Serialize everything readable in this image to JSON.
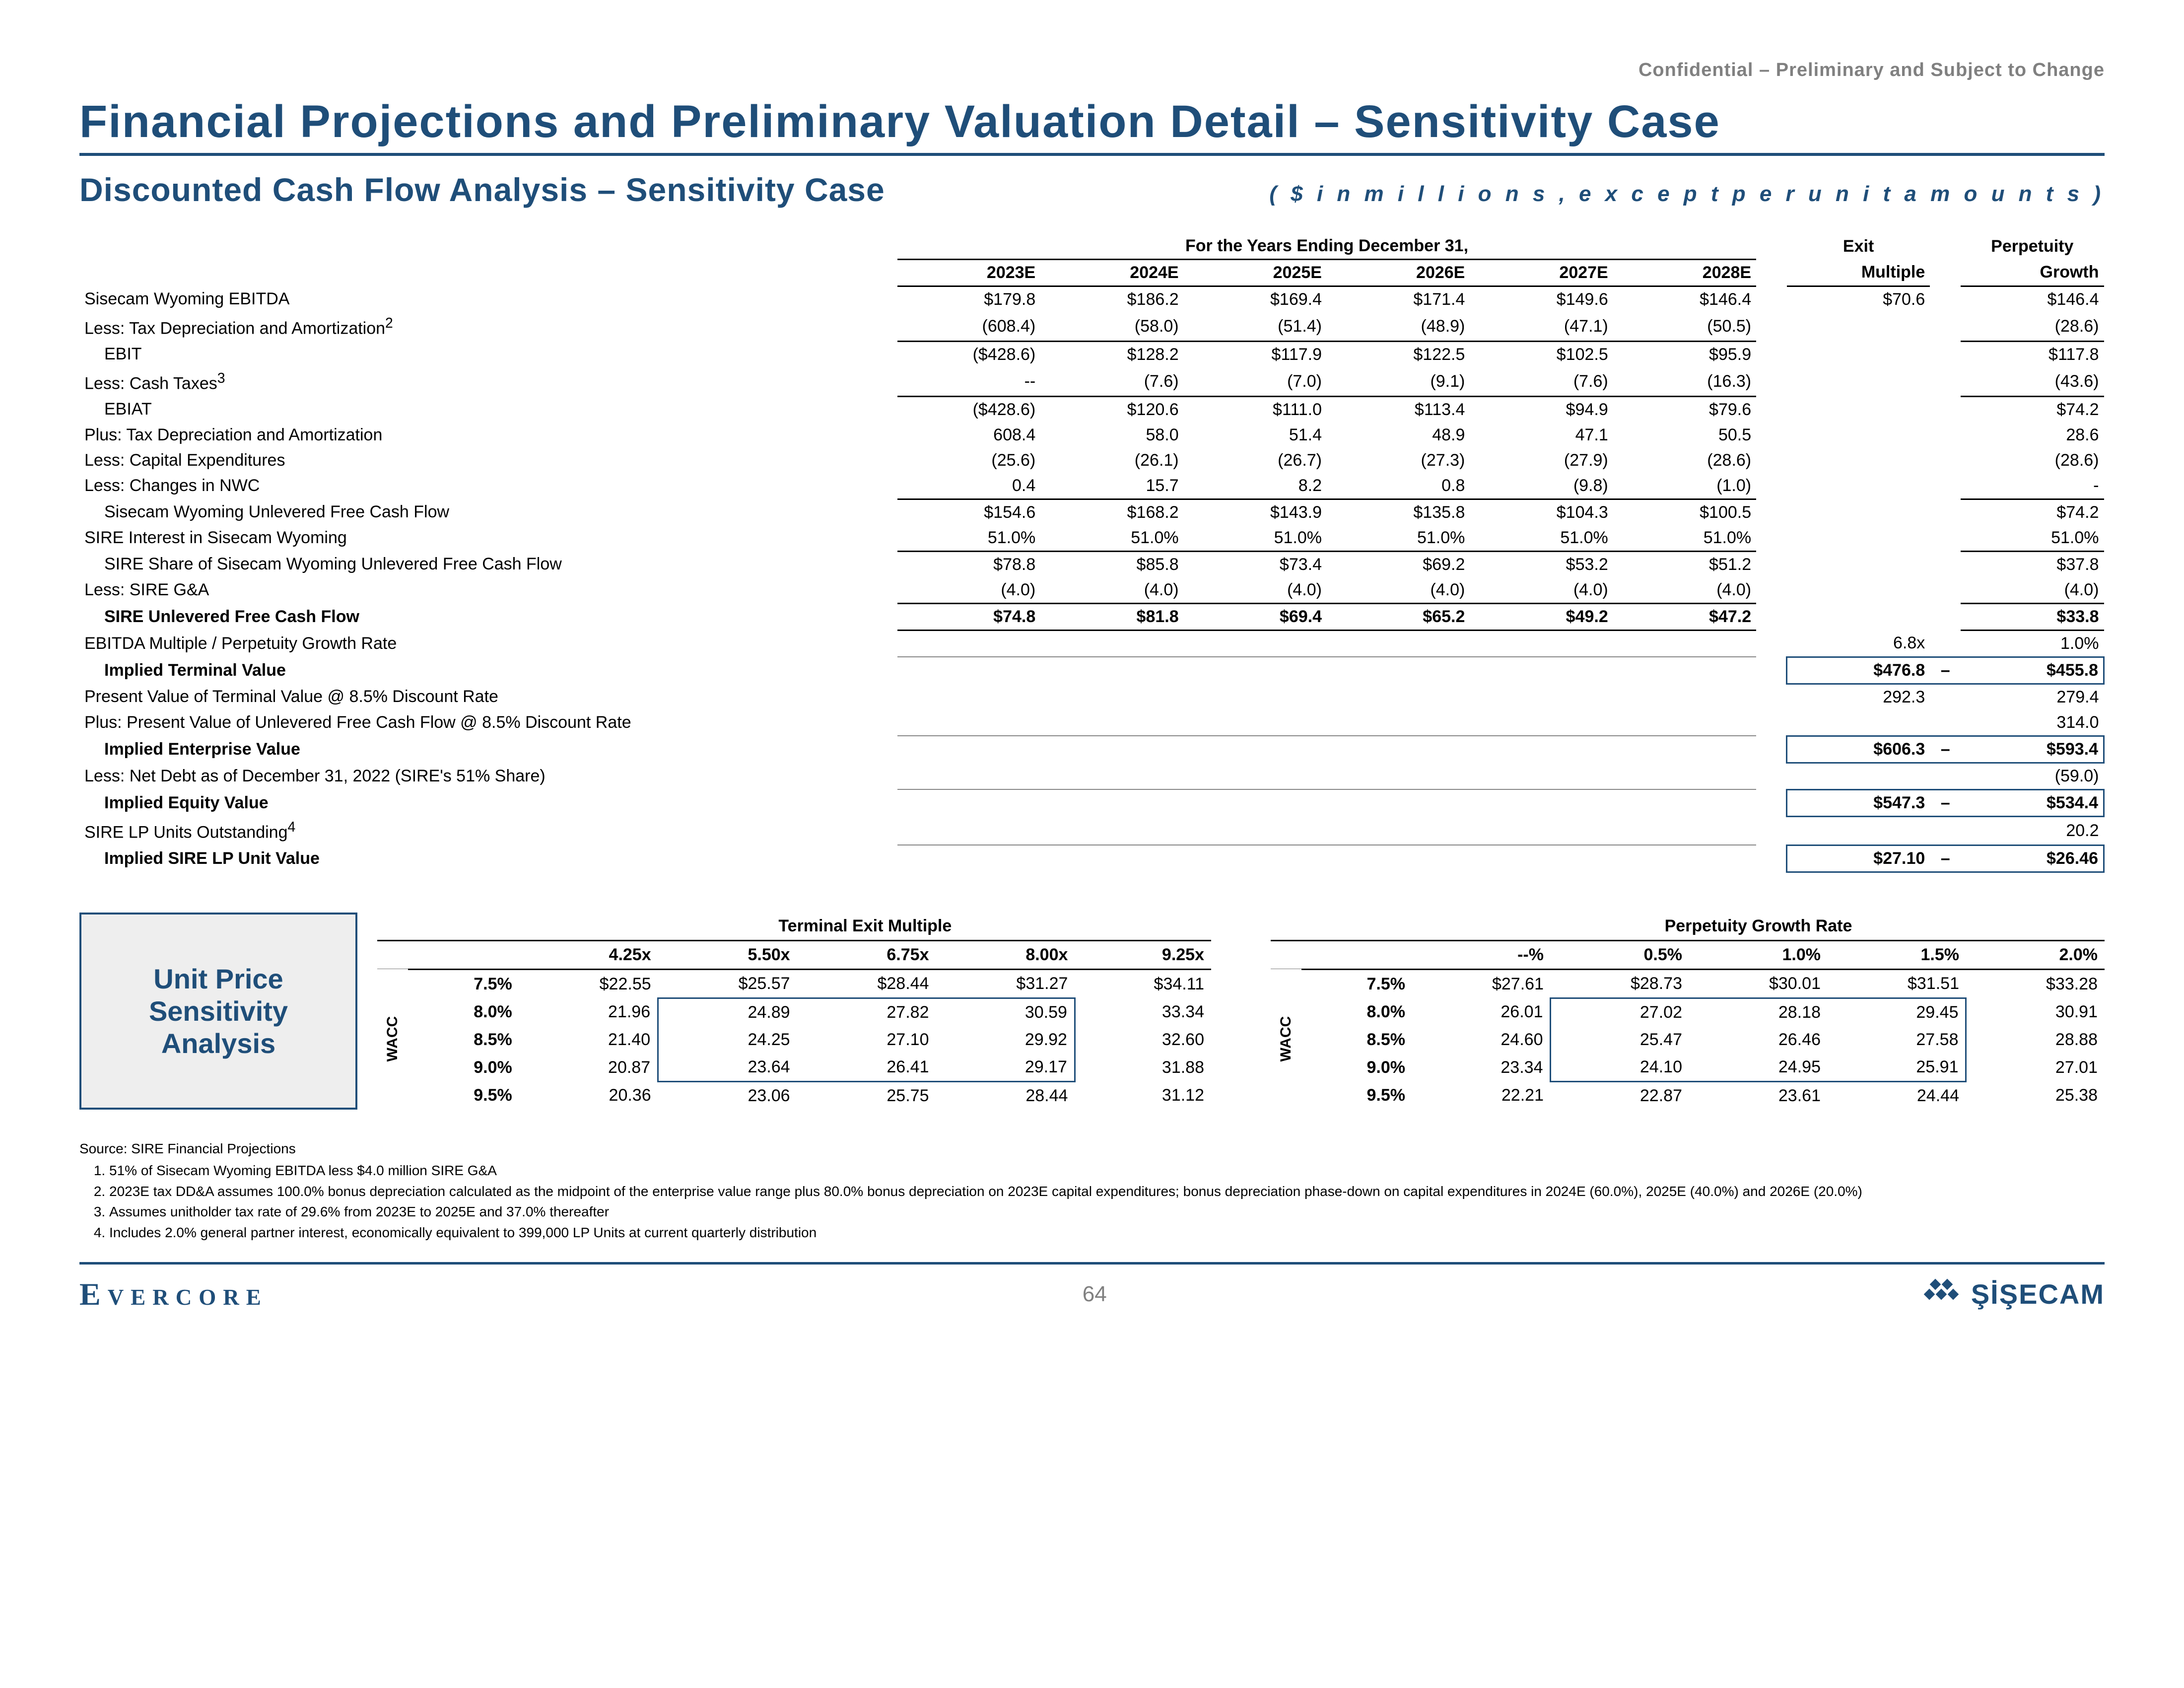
{
  "confidentiality": "Confidential – Preliminary and Subject to Change",
  "title": "Financial Projections and Preliminary Valuation Detail – Sensitivity Case",
  "subtitle": "Discounted Cash Flow Analysis – Sensitivity Case",
  "units_note": "( $   i n   m i l l i o n s ,   e x c e p t   p e r   u n i t   a m o u n t s )",
  "colors": {
    "accent": "#1f4e79",
    "grey_text": "#808080",
    "grey_bg": "#eeeeee",
    "border": "#000000"
  },
  "headers": {
    "span": "For the Years Ending December 31,",
    "years": [
      "2023E",
      "2024E",
      "2025E",
      "2026E",
      "2027E",
      "2028E"
    ],
    "exit": "Exit",
    "exit2": "Multiple",
    "perp": "Perpetuity",
    "perp2": "Growth"
  },
  "rows": [
    {
      "label": "Sisecam Wyoming EBITDA",
      "v": [
        "$179.8",
        "$186.2",
        "$169.4",
        "$171.4",
        "$149.6",
        "$146.4"
      ],
      "exit": "$70.6",
      "perp": "$146.4"
    },
    {
      "label": "Less: Tax Depreciation and Amortization",
      "sup": "2",
      "v": [
        "(608.4)",
        "(58.0)",
        "(51.4)",
        "(48.9)",
        "(47.1)",
        "(50.5)"
      ],
      "exit": "",
      "perp": "(28.6)",
      "bb": true
    },
    {
      "label": "EBIT",
      "v": [
        "($428.6)",
        "$128.2",
        "$117.9",
        "$122.5",
        "$102.5",
        "$95.9"
      ],
      "exit": "",
      "perp": "$117.8",
      "indent": 1
    },
    {
      "label": "Less: Cash Taxes",
      "sup": "3",
      "v": [
        "--",
        "(7.6)",
        "(7.0)",
        "(9.1)",
        "(7.6)",
        "(16.3)"
      ],
      "exit": "",
      "perp": "(43.6)",
      "bb": true
    },
    {
      "label": "EBIAT",
      "v": [
        "($428.6)",
        "$120.6",
        "$111.0",
        "$113.4",
        "$94.9",
        "$79.6"
      ],
      "exit": "",
      "perp": "$74.2",
      "indent": 1
    },
    {
      "label": "Plus: Tax Depreciation and Amortization",
      "v": [
        "608.4",
        "58.0",
        "51.4",
        "48.9",
        "47.1",
        "50.5"
      ],
      "exit": "",
      "perp": "28.6"
    },
    {
      "label": "Less: Capital Expenditures",
      "v": [
        "(25.6)",
        "(26.1)",
        "(26.7)",
        "(27.3)",
        "(27.9)",
        "(28.6)"
      ],
      "exit": "",
      "perp": "(28.6)"
    },
    {
      "label": "Less: Changes in NWC",
      "v": [
        "0.4",
        "15.7",
        "8.2",
        "0.8",
        "(9.8)",
        "(1.0)"
      ],
      "exit": "",
      "perp": "-",
      "bb": true
    },
    {
      "label": "Sisecam Wyoming Unlevered Free Cash Flow",
      "v": [
        "$154.6",
        "$168.2",
        "$143.9",
        "$135.8",
        "$104.3",
        "$100.5"
      ],
      "exit": "",
      "perp": "$74.2",
      "indent": 1
    },
    {
      "label": "SIRE Interest in Sisecam Wyoming",
      "v": [
        "51.0%",
        "51.0%",
        "51.0%",
        "51.0%",
        "51.0%",
        "51.0%"
      ],
      "exit": "",
      "perp": "51.0%",
      "bb": true
    },
    {
      "label": "SIRE Share of Sisecam Wyoming Unlevered Free Cash Flow",
      "v": [
        "$78.8",
        "$85.8",
        "$73.4",
        "$69.2",
        "$53.2",
        "$51.2"
      ],
      "exit": "",
      "perp": "$37.8",
      "indent": 1
    },
    {
      "label": "Less: SIRE G&A",
      "v": [
        "(4.0)",
        "(4.0)",
        "(4.0)",
        "(4.0)",
        "(4.0)",
        "(4.0)"
      ],
      "exit": "",
      "perp": "(4.0)",
      "bb": true
    },
    {
      "label": "SIRE Unlevered Free Cash Flow",
      "v": [
        "$74.8",
        "$81.8",
        "$69.4",
        "$65.2",
        "$49.2",
        "$47.2"
      ],
      "exit": "",
      "perp": "$33.8",
      "bold": true,
      "indent": 1,
      "bb": true
    },
    {
      "label": "EBITDA Multiple / Perpetuity Growth Rate",
      "v": [
        "",
        "",
        "",
        "",
        "",
        ""
      ],
      "exit": "6.8x",
      "perp": "1.0%",
      "bbg": true
    },
    {
      "label": "Implied Terminal Value",
      "v": [
        "",
        "",
        "",
        "",
        "",
        ""
      ],
      "exit": "$476.8",
      "dash": "–",
      "perp": "$455.8",
      "bold": true,
      "indent": 1,
      "imp": true
    },
    {
      "label": "Present Value of Terminal Value @ 8.5% Discount Rate",
      "v": [
        "",
        "",
        "",
        "",
        "",
        ""
      ],
      "exit": "292.3",
      "perp": "279.4"
    },
    {
      "label": "Plus: Present Value of Unlevered Free Cash Flow @ 8.5% Discount Rate",
      "v": [
        "",
        "",
        "",
        "",
        "",
        ""
      ],
      "exit": "",
      "perp": "314.0",
      "extracol": "314.0",
      "bbg": true
    },
    {
      "label": "Implied Enterprise Value",
      "v": [
        "",
        "",
        "",
        "",
        "",
        ""
      ],
      "exit": "$606.3",
      "dash": "–",
      "perp": "$593.4",
      "bold": true,
      "indent": 1,
      "imp": true
    },
    {
      "label": "Less: Net Debt as of December 31, 2022 (SIRE's 51% Share)",
      "v": [
        "",
        "",
        "",
        "",
        "",
        ""
      ],
      "exit": "",
      "perp": "(59.0)",
      "extracol": "(59.0)",
      "bbg": true
    },
    {
      "label": "Implied Equity Value",
      "v": [
        "",
        "",
        "",
        "",
        "",
        ""
      ],
      "exit": "$547.3",
      "dash": "–",
      "perp": "$534.4",
      "bold": true,
      "indent": 1,
      "imp": true
    },
    {
      "label": "SIRE LP Units Outstanding",
      "sup": "4",
      "v": [
        "",
        "",
        "",
        "",
        "",
        ""
      ],
      "exit": "",
      "perp": "20.2",
      "extracol": "20.2",
      "bbg": true
    },
    {
      "label": "Implied SIRE LP Unit Value",
      "v": [
        "",
        "",
        "",
        "",
        "",
        ""
      ],
      "exit": "$27.10",
      "dash": "–",
      "perp": "$26.46",
      "bold": true,
      "indent": 1,
      "imp": true
    }
  ],
  "sens": {
    "box_label": "Unit Price Sensitivity Analysis",
    "wacc_label": "WACC",
    "left": {
      "title": "Terminal Exit Multiple",
      "cols": [
        "4.25x",
        "5.50x",
        "6.75x",
        "8.00x",
        "9.25x"
      ],
      "rows": [
        {
          "h": "7.5%",
          "v": [
            "$22.55",
            "$25.57",
            "$28.44",
            "$31.27",
            "$34.11"
          ]
        },
        {
          "h": "8.0%",
          "v": [
            "21.96",
            "24.89",
            "27.82",
            "30.59",
            "33.34"
          ]
        },
        {
          "h": "8.5%",
          "v": [
            "21.40",
            "24.25",
            "27.10",
            "29.92",
            "32.60"
          ]
        },
        {
          "h": "9.0%",
          "v": [
            "20.87",
            "23.64",
            "26.41",
            "29.17",
            "31.88"
          ]
        },
        {
          "h": "9.5%",
          "v": [
            "20.36",
            "23.06",
            "25.75",
            "28.44",
            "31.12"
          ]
        }
      ],
      "box_rows": [
        1,
        2,
        3
      ],
      "box_cols": [
        1,
        2,
        3
      ]
    },
    "right": {
      "title": "Perpetuity Growth Rate",
      "cols": [
        "--%",
        "0.5%",
        "1.0%",
        "1.5%",
        "2.0%"
      ],
      "rows": [
        {
          "h": "7.5%",
          "v": [
            "$27.61",
            "$28.73",
            "$30.01",
            "$31.51",
            "$33.28"
          ]
        },
        {
          "h": "8.0%",
          "v": [
            "26.01",
            "27.02",
            "28.18",
            "29.45",
            "30.91"
          ]
        },
        {
          "h": "8.5%",
          "v": [
            "24.60",
            "25.47",
            "26.46",
            "27.58",
            "28.88"
          ]
        },
        {
          "h": "9.0%",
          "v": [
            "23.34",
            "24.10",
            "24.95",
            "25.91",
            "27.01"
          ]
        },
        {
          "h": "9.5%",
          "v": [
            "22.21",
            "22.87",
            "23.61",
            "24.44",
            "25.38"
          ]
        }
      ],
      "box_rows": [
        1,
        2,
        3
      ],
      "box_cols": [
        1,
        2,
        3
      ]
    }
  },
  "footnotes": {
    "source": "Source: SIRE Financial Projections",
    "items": [
      "51% of Sisecam Wyoming EBITDA less $4.0 million SIRE G&A",
      "2023E tax DD&A assumes 100.0% bonus depreciation calculated as the midpoint of the enterprise value range plus 80.0% bonus depreciation on 2023E capital expenditures; bonus depreciation phase-down on capital expenditures in 2024E (60.0%), 2025E (40.0%) and 2026E (20.0%)",
      "Assumes unitholder tax rate of 29.6% from 2023E to 2025E and 37.0% thereafter",
      "Includes 2.0% general partner interest, economically equivalent to 399,000 LP Units at current quarterly distribution"
    ]
  },
  "footer": {
    "left": "Evercore",
    "page": "64",
    "right": "ŞİŞECAM"
  }
}
